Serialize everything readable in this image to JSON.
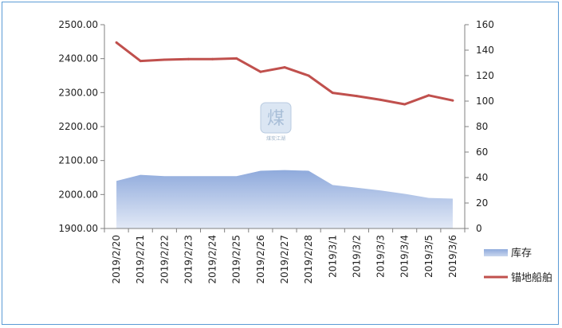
{
  "chart_data": {
    "type": "area+line",
    "categories": [
      "2019/2/20",
      "2019/2/21",
      "2019/2/22",
      "2019/2/23",
      "2019/2/24",
      "2019/2/25",
      "2019/2/26",
      "2019/2/27",
      "2019/2/28",
      "2019/3/1",
      "2019/3/2",
      "2019/3/3",
      "2019/3/4",
      "2019/3/5",
      "2019/3/6"
    ],
    "left_axis": {
      "min": 1900,
      "max": 2500,
      "step": 100,
      "tick_labels": [
        "1900.00",
        "2000.00",
        "2100.00",
        "2200.00",
        "2300.00",
        "2400.00",
        "2500.00"
      ]
    },
    "right_axis": {
      "min": 0,
      "max": 160,
      "step": 20,
      "tick_labels": [
        "0",
        "20",
        "40",
        "60",
        "80",
        "100",
        "120",
        "140",
        "160"
      ]
    },
    "series": [
      {
        "name": "库存",
        "kind": "area",
        "axis": "left",
        "values": [
          2040,
          2058,
          2054,
          2054,
          2054,
          2054,
          2070,
          2072,
          2070,
          2028,
          2020,
          2012,
          2002,
          1990,
          1988
        ],
        "color_top": "#8faadc",
        "color_bottom": "#e2e9f6"
      },
      {
        "name": "锚地船舶",
        "kind": "line",
        "axis": "right",
        "values": [
          146,
          131.5,
          132.5,
          133,
          133,
          133.5,
          123,
          126.5,
          120,
          106.5,
          104,
          101,
          97.5,
          104.5,
          100.5
        ],
        "color": "#c0504d"
      }
    ],
    "legend_position": "right",
    "grid": false
  },
  "watermark": {
    "caption": "煤炭江湖"
  }
}
